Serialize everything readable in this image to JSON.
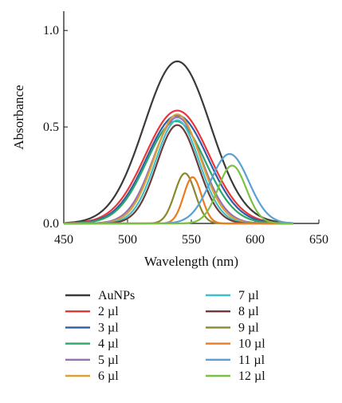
{
  "chart_data": {
    "type": "line",
    "title": "",
    "xlabel": "Wavelength (nm)",
    "ylabel": "Absorbance",
    "xlim": [
      450,
      650
    ],
    "ylim": [
      0,
      1.1
    ],
    "x_ticks": [
      450,
      500,
      550,
      600,
      650
    ],
    "y_ticks": [
      {
        "value": 0,
        "label": "0.0"
      },
      {
        "value": 0.5,
        "label": "0.5"
      },
      {
        "value": 1.0,
        "label": "1.0"
      }
    ],
    "grid": false,
    "legend_position": "bottom",
    "series": [
      {
        "name": "AuNPs",
        "color": "#3a3a3a",
        "peak_x": 539,
        "peak_y": 0.84,
        "width": 26
      },
      {
        "name": "2 µl",
        "color": "#e8363a",
        "peak_x": 539,
        "peak_y": 0.585,
        "width": 25
      },
      {
        "name": "3 µl",
        "color": "#2e5ea8",
        "peak_x": 539,
        "peak_y": 0.56,
        "width": 24
      },
      {
        "name": "4 µl",
        "color": "#2aa86a",
        "peak_x": 538,
        "peak_y": 0.53,
        "width": 23
      },
      {
        "name": "5 µl",
        "color": "#9a6fb0",
        "peak_x": 539,
        "peak_y": 0.55,
        "width": 19
      },
      {
        "name": "6 µl",
        "color": "#d9a133",
        "peak_x": 539,
        "peak_y": 0.565,
        "width": 18
      },
      {
        "name": "7 µl",
        "color": "#3fc0c9",
        "peak_x": 539,
        "peak_y": 0.535,
        "width": 17
      },
      {
        "name": "8 µl",
        "color": "#6e3b3b",
        "peak_x": 539,
        "peak_y": 0.51,
        "width": 16
      },
      {
        "name": "9 µl",
        "color": "#8a8a2a",
        "peak_x": 545,
        "peak_y": 0.26,
        "width": 8
      },
      {
        "name": "10 µl",
        "color": "#ee7a1e",
        "peak_x": 551,
        "peak_y": 0.24,
        "width": 7
      },
      {
        "name": "11 µl",
        "color": "#5aa0d6",
        "peak_x": 580,
        "peak_y": 0.36,
        "width": 15
      },
      {
        "name": "12 µl",
        "color": "#7cc043",
        "peak_x": 582,
        "peak_y": 0.3,
        "width": 11
      }
    ]
  }
}
